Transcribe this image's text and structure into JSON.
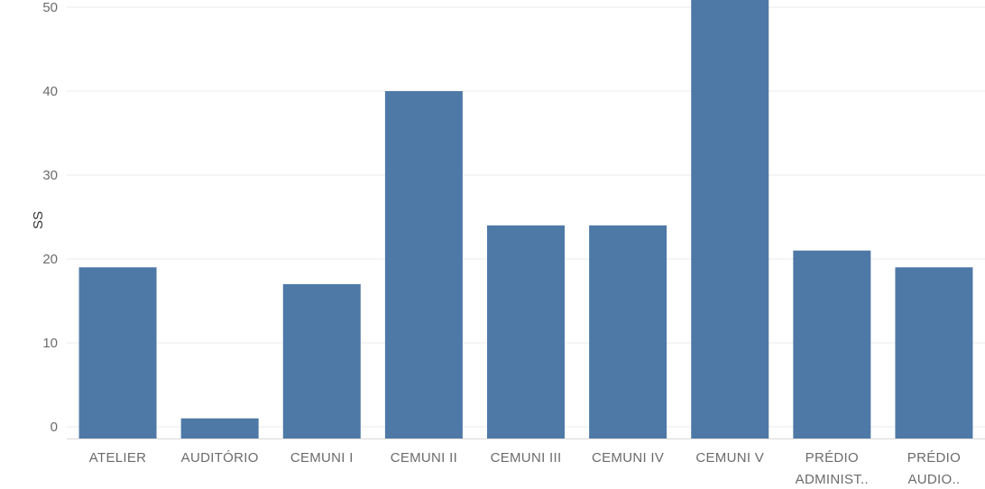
{
  "chart_data": {
    "type": "bar",
    "ylabel": "SS",
    "xlabel": "",
    "title": "",
    "ylim": [
      -1.5,
      52
    ],
    "yticks": [
      0,
      10,
      20,
      30,
      40,
      50
    ],
    "grid": true,
    "bar_color": "#4e79a7",
    "categories": [
      [
        "ATELIER"
      ],
      [
        "AUDITÓRIO"
      ],
      [
        "CEMUNI I"
      ],
      [
        "CEMUNI II"
      ],
      [
        "CEMUNI III"
      ],
      [
        "CEMUNI IV"
      ],
      [
        "CEMUNI V"
      ],
      [
        "PRÉDIO",
        "ADMINIST.."
      ],
      [
        "PRÉDIO",
        "AUDIO.."
      ]
    ],
    "values": [
      19,
      1,
      17,
      40,
      24,
      24,
      51,
      21,
      19
    ]
  }
}
